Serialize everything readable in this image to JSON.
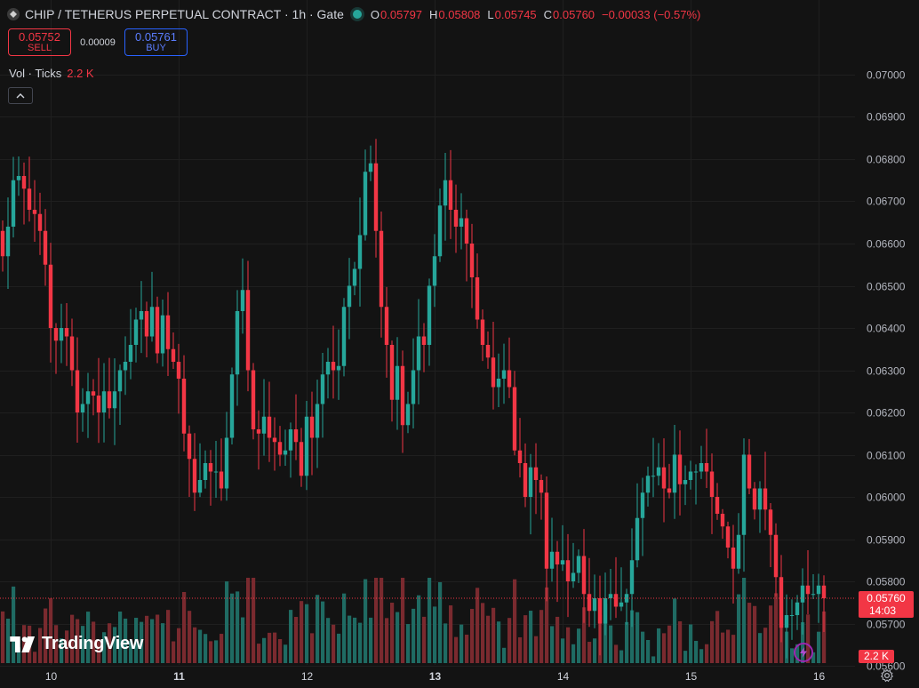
{
  "header": {
    "title": "CHIP / TETHERUS PERPETUAL CONTRACT · 1h · Gate",
    "ohlc": {
      "o_label": "O",
      "o": "0.05797",
      "h_label": "H",
      "h": "0.05808",
      "l_label": "L",
      "l": "0.05745",
      "c_label": "C",
      "c": "0.05760",
      "change": "−0.00033 (−0.57%)"
    }
  },
  "trade": {
    "sell_price": "0.05752",
    "sell_label": "SELL",
    "spread": "0.00009",
    "buy_price": "0.05761",
    "buy_label": "BUY"
  },
  "volume_legend": {
    "label": "Vol · Ticks",
    "value": "2.2 K"
  },
  "branding": {
    "logo_text": "TradingView"
  },
  "icons": {
    "bolt": "lightning-bolt-icon",
    "settings": "gear-icon",
    "collapse": "chevron-up-icon"
  },
  "colors": {
    "up": "#26a69a",
    "down": "#f23645",
    "up_vol": "#1f6b63",
    "down_vol": "#7a2a2f",
    "background": "#131313",
    "grid": "#1f1f1f"
  },
  "chart_data": {
    "type": "candlestick",
    "timeframe": "1h",
    "y_range": [
      0.0553,
      0.0708
    ],
    "y_ticks": [
      "0.07000",
      "0.06900",
      "0.06800",
      "0.06700",
      "0.06600",
      "0.06500",
      "0.06400",
      "0.06300",
      "0.06200",
      "0.06100",
      "0.06000",
      "0.05900",
      "0.05800",
      "0.05700",
      "0.05600"
    ],
    "y_tick_values": [
      0.07,
      0.069,
      0.068,
      0.067,
      0.066,
      0.065,
      0.064,
      0.063,
      0.062,
      0.061,
      0.06,
      0.059,
      0.058,
      0.057,
      0.056
    ],
    "x_labels": [
      "10",
      "11",
      "12",
      "13",
      "14",
      "15",
      "16"
    ],
    "x_label_index": [
      9,
      33,
      57,
      81,
      105,
      129,
      153
    ],
    "x_label_bold": [
      false,
      true,
      false,
      true,
      false,
      false,
      false
    ],
    "last_price": {
      "value": 0.0576,
      "label": "0.05760",
      "countdown": "14:03"
    },
    "last_volume_label": "2.2 K",
    "approximate": true,
    "closes": [
      0.0657,
      0.0664,
      0.0675,
      0.0676,
      0.0673,
      0.0668,
      0.0667,
      0.0663,
      0.0655,
      0.064,
      0.0637,
      0.064,
      0.0638,
      0.063,
      0.062,
      0.0622,
      0.0625,
      0.0624,
      0.062,
      0.0625,
      0.0621,
      0.0625,
      0.063,
      0.0632,
      0.0636,
      0.0642,
      0.0644,
      0.0638,
      0.0645,
      0.0634,
      0.0643,
      0.0635,
      0.0632,
      0.0628,
      0.0615,
      0.0609,
      0.0601,
      0.0604,
      0.0608,
      0.0606,
      0.0606,
      0.0602,
      0.0614,
      0.0629,
      0.0644,
      0.0649,
      0.063,
      0.0616,
      0.0615,
      0.0619,
      0.0614,
      0.0613,
      0.061,
      0.0611,
      0.0616,
      0.0613,
      0.0605,
      0.0619,
      0.0614,
      0.0622,
      0.0629,
      0.0632,
      0.063,
      0.0631,
      0.0645,
      0.065,
      0.0654,
      0.0662,
      0.0677,
      0.0679,
      0.0663,
      0.0645,
      0.0636,
      0.0623,
      0.0631,
      0.0617,
      0.0622,
      0.063,
      0.0638,
      0.0636,
      0.065,
      0.0657,
      0.0669,
      0.0675,
      0.0668,
      0.0664,
      0.0666,
      0.066,
      0.0652,
      0.0642,
      0.0636,
      0.0633,
      0.0626,
      0.0628,
      0.063,
      0.0626,
      0.0611,
      0.0608,
      0.06,
      0.0607,
      0.0604,
      0.0601,
      0.0583,
      0.0587,
      0.0584,
      0.0585,
      0.058,
      0.0582,
      0.0586,
      0.0577,
      0.0573,
      0.0576,
      0.057,
      0.0576,
      0.0577,
      0.0574,
      0.0575,
      0.0577,
      0.0585,
      0.0595,
      0.0601,
      0.0605,
      0.0605,
      0.0607,
      0.0602,
      0.0601,
      0.061,
      0.0603,
      0.0604,
      0.0606,
      0.0606,
      0.0608,
      0.0606,
      0.06,
      0.0596,
      0.0593,
      0.0588,
      0.0583,
      0.0591,
      0.061,
      0.0602,
      0.0597,
      0.0602,
      0.0597,
      0.0591,
      0.0581,
      0.0569,
      0.0572,
      0.0572,
      0.0575,
      0.0579,
      0.0577,
      0.0577,
      0.0579,
      0.0576
    ],
    "volume_max": 14
  }
}
